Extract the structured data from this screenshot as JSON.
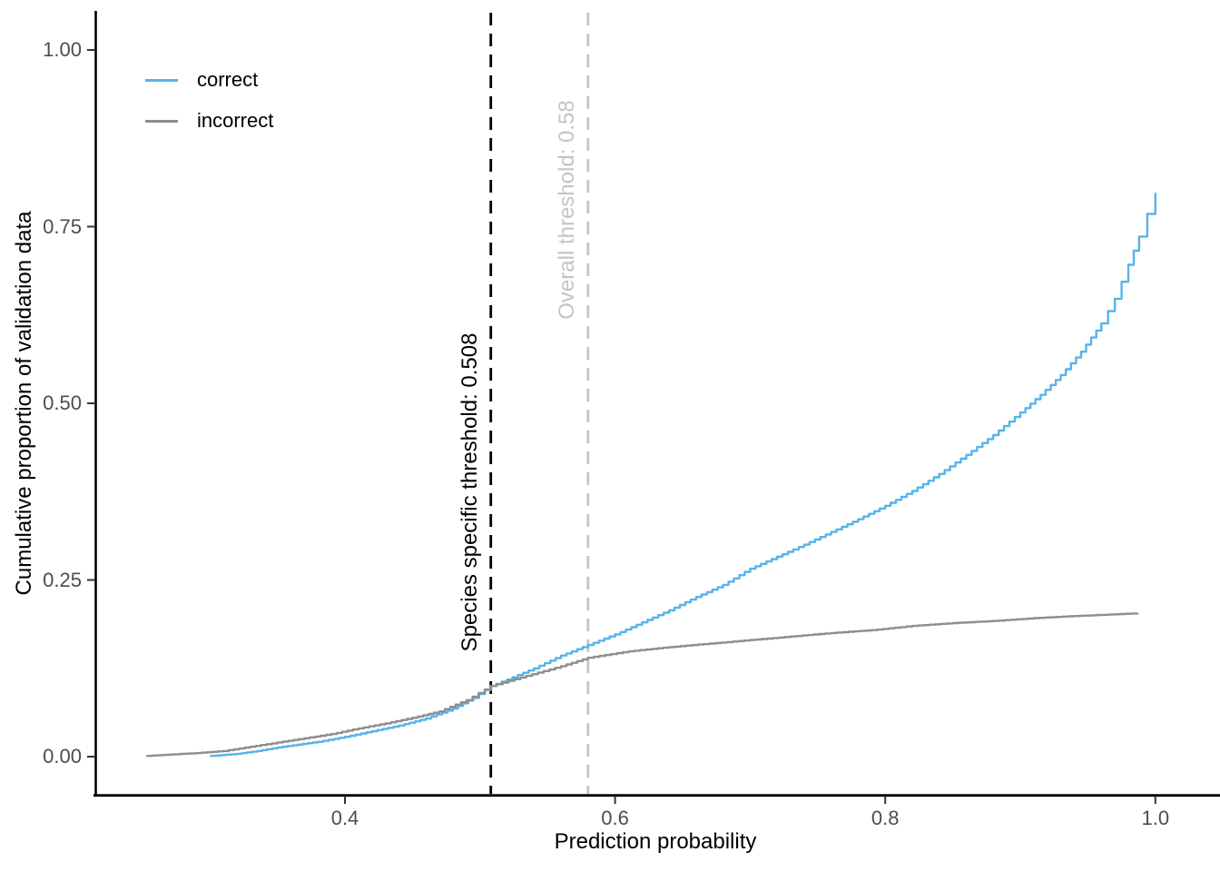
{
  "chart_data": {
    "type": "line",
    "title": "",
    "xlabel": "Prediction probability",
    "ylabel": "Cumulative proportion of validation data",
    "x_ticks": [
      0.4,
      0.6,
      0.8,
      1.0
    ],
    "x_tick_labels": [
      "0.4",
      "0.6",
      "0.8",
      "1.0"
    ],
    "y_ticks": [
      0.0,
      0.25,
      0.5,
      0.75,
      1.0
    ],
    "y_tick_labels": [
      "0.00",
      "0.25",
      "0.50",
      "0.75",
      "1.00"
    ],
    "xlim": [
      0.21,
      1.05
    ],
    "ylim": [
      -0.05,
      1.05
    ],
    "grid": false,
    "legend_position": "inside-top-left",
    "style": "ecdf-step",
    "colors": {
      "correct": "#56B4E9",
      "incorrect": "#8E8E8E",
      "axis_line": "#000000",
      "tick_mark": "#333333",
      "tick_text": "#4d4d4d",
      "species_threshold": "#000000",
      "overall_threshold": "#C4C4C4"
    },
    "series": [
      {
        "name": "correct",
        "color": "#56B4E9",
        "points": [
          [
            0.3,
            0.001
          ],
          [
            0.32,
            0.004
          ],
          [
            0.335,
            0.008
          ],
          [
            0.35,
            0.013
          ],
          [
            0.365,
            0.017
          ],
          [
            0.38,
            0.021
          ],
          [
            0.4,
            0.028
          ],
          [
            0.42,
            0.036
          ],
          [
            0.44,
            0.044
          ],
          [
            0.46,
            0.054
          ],
          [
            0.48,
            0.068
          ],
          [
            0.495,
            0.083
          ],
          [
            0.508,
            0.1
          ],
          [
            0.52,
            0.109
          ],
          [
            0.54,
            0.125
          ],
          [
            0.56,
            0.143
          ],
          [
            0.58,
            0.158
          ],
          [
            0.6,
            0.173
          ],
          [
            0.62,
            0.19
          ],
          [
            0.64,
            0.207
          ],
          [
            0.66,
            0.226
          ],
          [
            0.68,
            0.243
          ],
          [
            0.7,
            0.266
          ],
          [
            0.72,
            0.283
          ],
          [
            0.74,
            0.3
          ],
          [
            0.76,
            0.318
          ],
          [
            0.78,
            0.336
          ],
          [
            0.8,
            0.355
          ],
          [
            0.82,
            0.376
          ],
          [
            0.84,
            0.4
          ],
          [
            0.86,
            0.427
          ],
          [
            0.88,
            0.455
          ],
          [
            0.9,
            0.487
          ],
          [
            0.915,
            0.512
          ],
          [
            0.93,
            0.54
          ],
          [
            0.945,
            0.573
          ],
          [
            0.96,
            0.613
          ],
          [
            0.97,
            0.648
          ],
          [
            0.98,
            0.696
          ],
          [
            0.988,
            0.736
          ],
          [
            0.994,
            0.768
          ],
          [
            1.0,
            0.798
          ]
        ]
      },
      {
        "name": "incorrect",
        "color": "#8E8E8E",
        "points": [
          [
            0.253,
            0.001
          ],
          [
            0.27,
            0.003
          ],
          [
            0.29,
            0.005
          ],
          [
            0.31,
            0.008
          ],
          [
            0.33,
            0.014
          ],
          [
            0.35,
            0.02
          ],
          [
            0.37,
            0.026
          ],
          [
            0.39,
            0.032
          ],
          [
            0.41,
            0.04
          ],
          [
            0.43,
            0.047
          ],
          [
            0.45,
            0.055
          ],
          [
            0.47,
            0.064
          ],
          [
            0.49,
            0.08
          ],
          [
            0.508,
            0.1
          ],
          [
            0.53,
            0.112
          ],
          [
            0.56,
            0.128
          ],
          [
            0.58,
            0.14
          ],
          [
            0.61,
            0.149
          ],
          [
            0.64,
            0.155
          ],
          [
            0.67,
            0.16
          ],
          [
            0.7,
            0.165
          ],
          [
            0.73,
            0.17
          ],
          [
            0.76,
            0.175
          ],
          [
            0.79,
            0.179
          ],
          [
            0.82,
            0.185
          ],
          [
            0.85,
            0.189
          ],
          [
            0.88,
            0.192
          ],
          [
            0.91,
            0.196
          ],
          [
            0.94,
            0.199
          ],
          [
            0.965,
            0.201
          ],
          [
            0.987,
            0.203
          ]
        ]
      }
    ],
    "thresholds": [
      {
        "label": "Species specific threshold: 0.508",
        "value": 0.508,
        "line_color": "#000000",
        "label_color": "#000000",
        "dashed": true
      },
      {
        "label": "Overall threshold: 0.58",
        "value": 0.58,
        "line_color": "#C4C4C4",
        "label_color": "#C4C4C4",
        "dashed": true
      }
    ]
  },
  "legend": {
    "items": [
      {
        "label": "correct"
      },
      {
        "label": "incorrect"
      }
    ]
  }
}
